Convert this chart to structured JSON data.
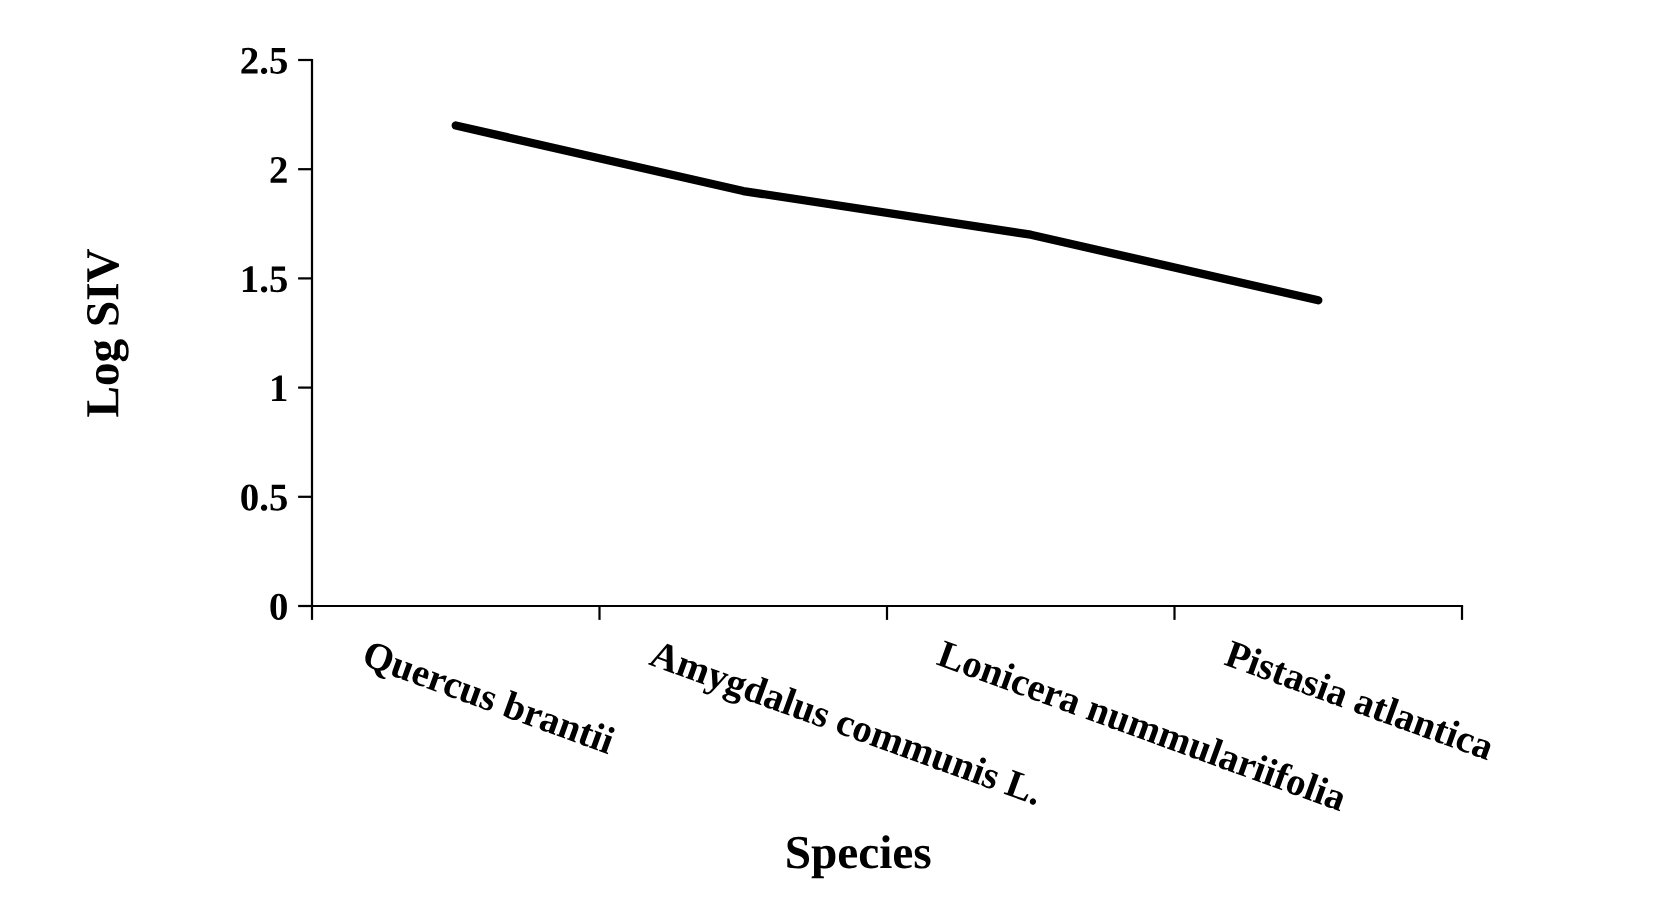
{
  "chart_data": {
    "type": "line",
    "xlabel": "Species",
    "ylabel": "Log SIV",
    "categories": [
      "Quercus brantii",
      "Amygdalus communis L.",
      "Lonicera nummulariifolia",
      "Pistasia atlantica"
    ],
    "series": [
      {
        "color": "#000000",
        "values": [
          2.2,
          1.9,
          1.7,
          1.4
        ]
      }
    ],
    "ylim": [
      0,
      2.5
    ],
    "yticks": [
      0,
      0.5,
      1,
      1.5,
      2,
      2.5
    ],
    "grid": false,
    "legend": false,
    "marker": "none",
    "line_style": "solid"
  }
}
